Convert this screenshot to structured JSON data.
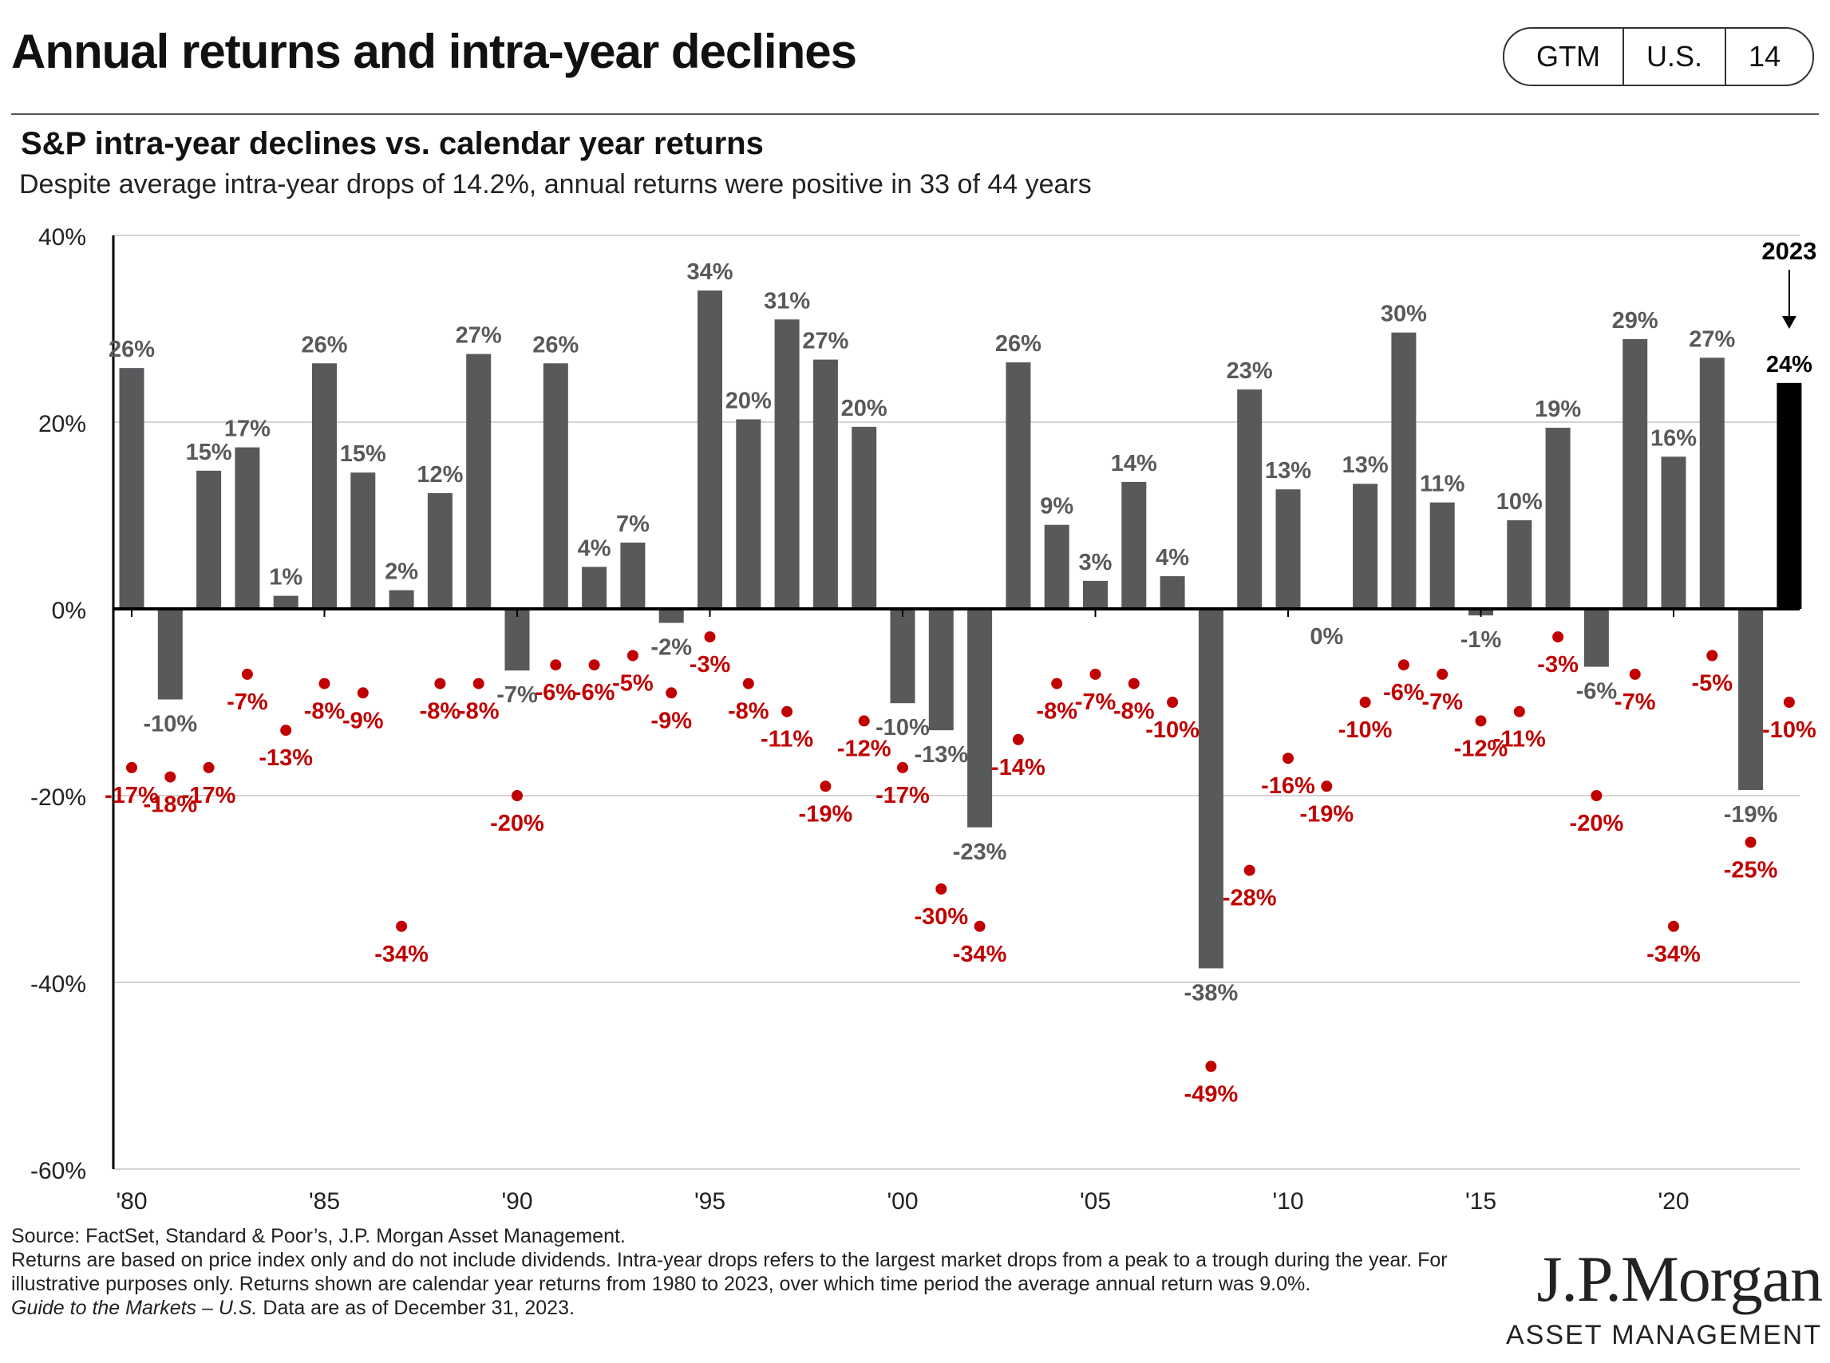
{
  "header": {
    "title": "Annual returns and intra-year declines",
    "tabs": [
      "GTM",
      "U.S.",
      "14"
    ]
  },
  "chart_header": {
    "subtitle": "S&P intra-year declines vs. calendar year returns",
    "description": "Despite average intra-year drops of 14.2%, annual returns were positive in 33 of 44 years"
  },
  "chart_data": {
    "type": "bar",
    "x": [
      1980,
      1981,
      1982,
      1983,
      1984,
      1985,
      1986,
      1987,
      1988,
      1989,
      1990,
      1991,
      1992,
      1993,
      1994,
      1995,
      1996,
      1997,
      1998,
      1999,
      2000,
      2001,
      2002,
      2003,
      2004,
      2005,
      2006,
      2007,
      2008,
      2009,
      2010,
      2011,
      2012,
      2013,
      2014,
      2015,
      2016,
      2017,
      2018,
      2019,
      2020,
      2021,
      2022,
      2023
    ],
    "x_tick_labels": [
      "'80",
      "'85",
      "'90",
      "'95",
      "'00",
      "'05",
      "'10",
      "'15",
      "'20"
    ],
    "x_tick_years": [
      1980,
      1985,
      1990,
      1995,
      2000,
      2005,
      2010,
      2015,
      2020
    ],
    "series": [
      {
        "kind": "bar",
        "values": [
          25.8,
          -9.7,
          14.8,
          17.3,
          1.4,
          26.3,
          14.6,
          2.0,
          12.4,
          27.3,
          -6.6,
          26.3,
          4.5,
          7.1,
          -1.5,
          34.1,
          20.3,
          31.0,
          26.7,
          19.5,
          -10.1,
          -13.0,
          -23.4,
          26.4,
          9.0,
          3.0,
          13.6,
          3.5,
          -38.5,
          23.5,
          12.8,
          0.0,
          13.4,
          29.6,
          11.4,
          -0.7,
          9.5,
          19.4,
          -6.2,
          28.9,
          16.3,
          26.9,
          -19.4,
          24.2
        ],
        "labels": [
          "26%",
          "-10%",
          "15%",
          "17%",
          "1%",
          "26%",
          "15%",
          "2%",
          "12%",
          "27%",
          "-7%",
          "26%",
          "4%",
          "7%",
          "-2%",
          "34%",
          "20%",
          "31%",
          "27%",
          "20%",
          "-10%",
          "-13%",
          "-23%",
          "26%",
          "9%",
          "3%",
          "14%",
          "4%",
          "-38%",
          "23%",
          "13%",
          "0%",
          "13%",
          "30%",
          "11%",
          "-1%",
          "10%",
          "19%",
          "-6%",
          "29%",
          "16%",
          "27%",
          "-19%",
          "24%"
        ]
      },
      {
        "kind": "dot",
        "values": [
          -17,
          -18,
          -17,
          -7,
          -13,
          -8,
          -9,
          -34,
          -8,
          -8,
          -20,
          -6,
          -6,
          -5,
          -9,
          -3,
          -8,
          -11,
          -19,
          -12,
          -17,
          -30,
          -34,
          -14,
          -8,
          -7,
          -8,
          -10,
          -49,
          -28,
          -16,
          -19,
          -10,
          -6,
          -7,
          -12,
          -11,
          -3,
          -20,
          -7,
          -34,
          -5,
          -25,
          -10
        ],
        "labels": [
          "-17%",
          "-18%",
          "-17%",
          "-7%",
          "-13%",
          "-8%",
          "-9%",
          "-34%",
          "-8%",
          "-8%",
          "-20%",
          "-6%",
          "-6%",
          "-5%",
          "-9%",
          "-3%",
          "-8%",
          "-11%",
          "-19%",
          "-12%",
          "-17%",
          "-30%",
          "-34%",
          "-14%",
          "-8%",
          "-7%",
          "-8%",
          "-10%",
          "-49%",
          "-28%",
          "-16%",
          "-19%",
          "-10%",
          "-6%",
          "-7%",
          "-12%",
          "-11%",
          "-3%",
          "-20%",
          "-7%",
          "-34%",
          "-5%",
          "-25%",
          "-10%"
        ]
      }
    ],
    "y_tick_labels": [
      "40%",
      "20%",
      "0%",
      "-20%",
      "-40%",
      "-60%"
    ],
    "y_tick_values": [
      40,
      20,
      0,
      -20,
      -40,
      -60
    ],
    "ylim": [
      -60,
      40
    ],
    "highlight": {
      "year": 2023,
      "label": "2023"
    },
    "grid": true,
    "colors": {
      "bar": "#58595b",
      "highlight_bar": "#000000",
      "dot": "#c00000",
      "dot_label": "#c00000",
      "bar_label": "#58595b",
      "grid": "#d3d3d3"
    }
  },
  "footnotes": {
    "source": "Source: FactSet, Standard & Poor’s, J.P. Morgan Asset Management.",
    "notes": "Returns are based on price index only and do not include dividends. Intra-year drops refers to the largest market drops from a peak to a trough during the year. For illustrative purposes only. Returns shown are calendar year returns from 1980 to 2023, over which time period the average annual return was 9.0%.",
    "guide_italic": "Guide to the Markets – U.S.",
    "guide_rest": " Data are as of December 31, 2023."
  },
  "brand": {
    "name": "J.P.Morgan",
    "sub": "ASSET MANAGEMENT"
  }
}
